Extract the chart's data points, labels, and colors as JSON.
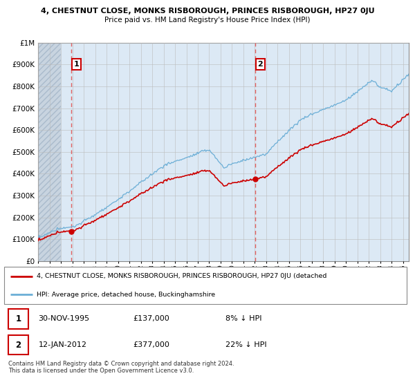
{
  "title1": "4, CHESTNUT CLOSE, MONKS RISBOROUGH, PRINCES RISBOROUGH, HP27 0JU",
  "title2": "Price paid vs. HM Land Registry's House Price Index (HPI)",
  "ytick_values": [
    0,
    100000,
    200000,
    300000,
    400000,
    500000,
    600000,
    700000,
    800000,
    900000,
    1000000
  ],
  "xlim_start": 1993,
  "xlim_end": 2025.5,
  "ylim_top": 1000000,
  "sale1_year": 1995.92,
  "sale1_price": 137000,
  "sale2_year": 2012.04,
  "sale2_price": 377000,
  "legend_line1": "4, CHESTNUT CLOSE, MONKS RISBOROUGH, PRINCES RISBOROUGH, HP27 0JU (detached",
  "legend_line2": "HPI: Average price, detached house, Buckinghamshire",
  "table_row1": [
    "1",
    "30-NOV-1995",
    "£137,000",
    "8% ↓ HPI"
  ],
  "table_row2": [
    "2",
    "12-JAN-2012",
    "£377,000",
    "22% ↓ HPI"
  ],
  "footnote": "Contains HM Land Registry data © Crown copyright and database right 2024.\nThis data is licensed under the Open Government Licence v3.0.",
  "hpi_color": "#6baed6",
  "price_color": "#cc0000",
  "vline_color": "#e06060",
  "bg_color": "#dce9f5",
  "hatch_color": "#c0c8d0",
  "grid_color": "#bbbbbb"
}
